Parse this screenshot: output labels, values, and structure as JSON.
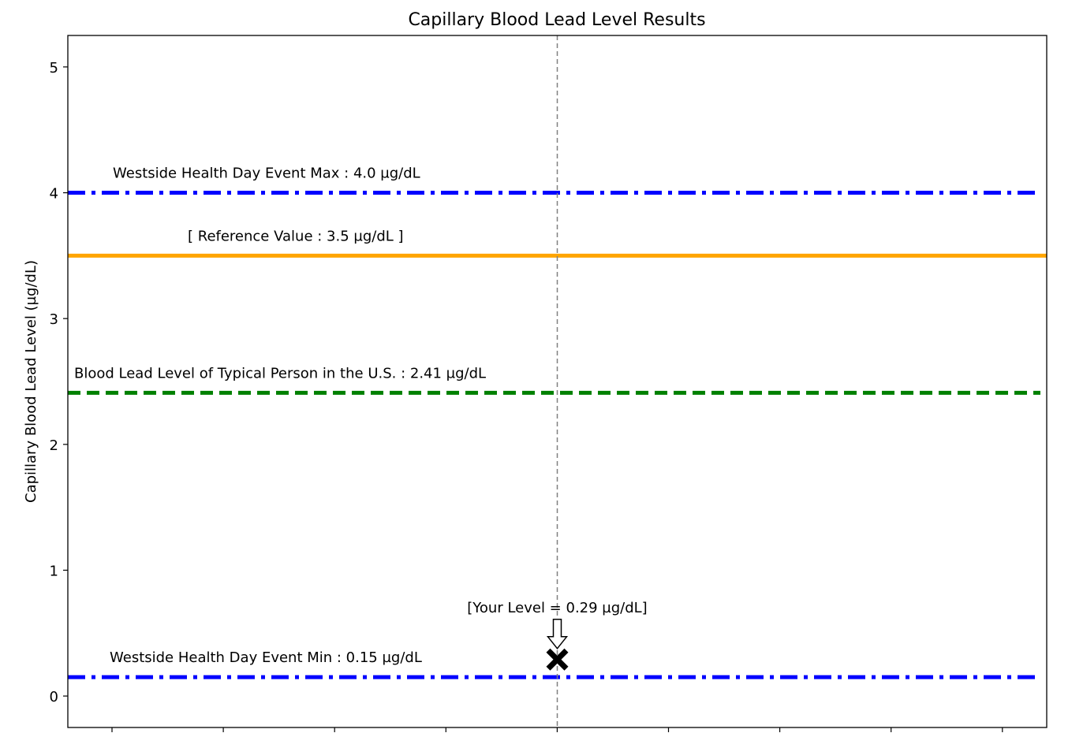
{
  "chart_data": {
    "type": "line",
    "title": "Capillary Blood Lead Level Results",
    "xlabel": "",
    "ylabel": "Capillary Blood Lead Level (µg/dL)",
    "ylim": [
      -0.25,
      5.25
    ],
    "yticks": [
      0,
      1,
      2,
      3,
      4,
      5
    ],
    "xtick_count": 9,
    "grid": false,
    "reference_lines": [
      {
        "value": 4.0,
        "label": "Westside Health Day Event Max : 4.0 µg/dL",
        "color": "#0000ff",
        "style": "dashdot"
      },
      {
        "value": 3.5,
        "label": "[ Reference Value : 3.5 µg/dL ]",
        "color": "#ffa500",
        "style": "solid"
      },
      {
        "value": 2.41,
        "label": "Blood Lead Level of Typical Person in the U.S. : 2.41 µg/dL",
        "color": "#008000",
        "style": "dashed"
      },
      {
        "value": 0.15,
        "label": "Westside Health Day Event Min : 0.15 µg/dL",
        "color": "#0000ff",
        "style": "dashdot"
      }
    ],
    "your_level": {
      "value": 0.29,
      "label": "[Your Level = 0.29 µg/dL]",
      "marker": "x",
      "color": "#000000"
    }
  }
}
